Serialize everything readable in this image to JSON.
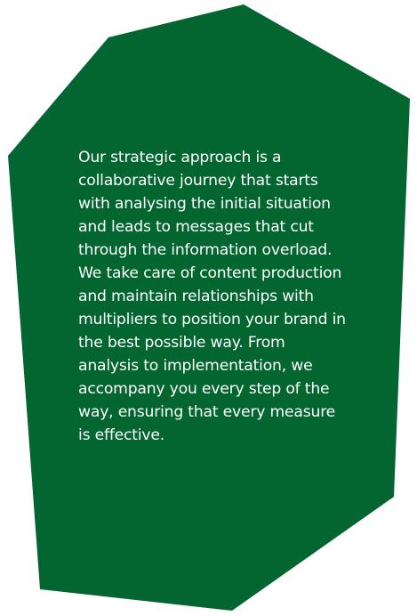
{
  "colors": {
    "shape_fill": "#036530",
    "text": "#ffffff",
    "background": "#ffffff"
  },
  "content": {
    "lines": [
      "Our strategic approach is a",
      "collaborative journey that starts",
      "with analysing the initial situation",
      "and leads to messages that cut",
      "through the information overload.",
      "We take care of content production",
      "and maintain relationships with",
      "multipliers to position your brand in",
      "the best possible way. From",
      "analysis to implementation, we",
      "accompany you every step of the",
      "way, ensuring that every measure",
      "is effective."
    ]
  }
}
